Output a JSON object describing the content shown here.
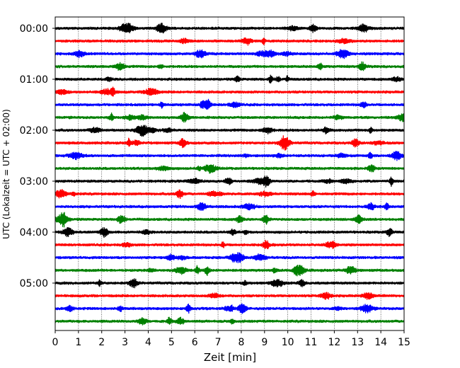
{
  "chart_data": {
    "type": "line",
    "xlabel": "Zeit  [min]",
    "ylabel": "UTC (Lokalzeit = UTC + 02:00)",
    "xlim": [
      0,
      15
    ],
    "x_ticks": [
      "0",
      "1",
      "2",
      "3",
      "4",
      "5",
      "6",
      "7",
      "8",
      "9",
      "10",
      "11",
      "12",
      "13",
      "14",
      "15"
    ],
    "y_ticks": [
      "00:00",
      "01:00",
      "02:00",
      "03:00",
      "04:00",
      "05:00"
    ],
    "trace_interval_min": 15,
    "grid": "vertical dotted at each minute",
    "series": [
      {
        "start": "00:00",
        "color": "#000000"
      },
      {
        "start": "00:15",
        "color": "#ff0000"
      },
      {
        "start": "00:30",
        "color": "#0000ff"
      },
      {
        "start": "00:45",
        "color": "#008000"
      },
      {
        "start": "01:00",
        "color": "#000000"
      },
      {
        "start": "01:15",
        "color": "#ff0000"
      },
      {
        "start": "01:30",
        "color": "#0000ff"
      },
      {
        "start": "01:45",
        "color": "#008000"
      },
      {
        "start": "02:00",
        "color": "#000000"
      },
      {
        "start": "02:15",
        "color": "#ff0000"
      },
      {
        "start": "02:30",
        "color": "#0000ff"
      },
      {
        "start": "02:45",
        "color": "#008000"
      },
      {
        "start": "03:00",
        "color": "#000000"
      },
      {
        "start": "03:15",
        "color": "#ff0000"
      },
      {
        "start": "03:30",
        "color": "#0000ff"
      },
      {
        "start": "03:45",
        "color": "#008000"
      },
      {
        "start": "04:00",
        "color": "#000000"
      },
      {
        "start": "04:15",
        "color": "#ff0000"
      },
      {
        "start": "04:30",
        "color": "#0000ff"
      },
      {
        "start": "04:45",
        "color": "#008000"
      },
      {
        "start": "05:00",
        "color": "#000000"
      },
      {
        "start": "05:15",
        "color": "#ff0000"
      },
      {
        "start": "05:30",
        "color": "#0000ff"
      },
      {
        "start": "05:45",
        "color": "#008000"
      }
    ]
  }
}
